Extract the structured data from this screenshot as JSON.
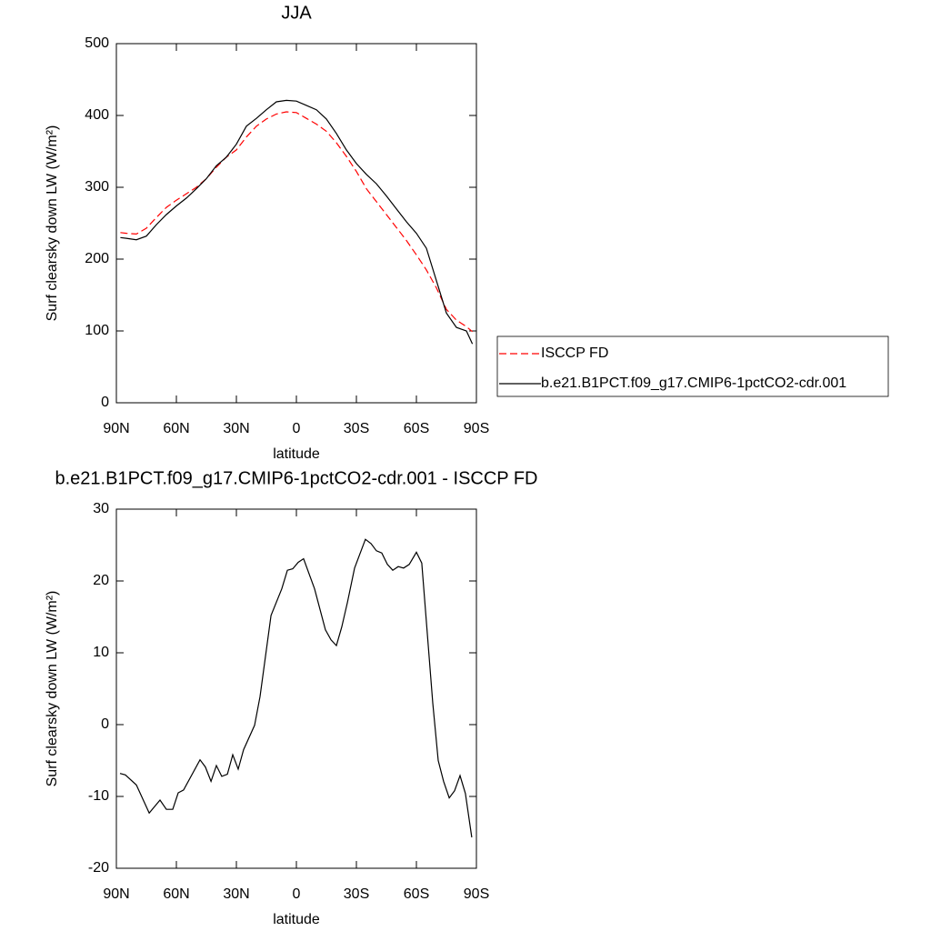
{
  "chart_data": [
    {
      "type": "line",
      "title": "JJA",
      "xlabel": "latitude",
      "ylabel": "Surf clearsky down LW (W/m²)",
      "xlim": [
        90,
        -90
      ],
      "xticks": [
        {
          "value": 90,
          "label": "90N"
        },
        {
          "value": 60,
          "label": "60N"
        },
        {
          "value": 30,
          "label": "30N"
        },
        0,
        {
          "value": -30,
          "label": "30S"
        },
        {
          "value": -60,
          "label": "60S"
        },
        {
          "value": -90,
          "label": "90S"
        }
      ],
      "ylim": [
        0,
        500
      ],
      "yticks": [
        0,
        100,
        200,
        300,
        400,
        500
      ],
      "grid": false,
      "legend": "right",
      "x": [
        88,
        85,
        80,
        75,
        70,
        65,
        60,
        55,
        50,
        45,
        40,
        35,
        30,
        25,
        20,
        15,
        10,
        5,
        0,
        -5,
        -10,
        -15,
        -20,
        -25,
        -30,
        -35,
        -40,
        -45,
        -50,
        -55,
        -60,
        -65,
        -70,
        -75,
        -80,
        -85,
        -88
      ],
      "series": [
        {
          "name": "ISCCP FD",
          "color": "#ff0000",
          "dash": "dashed",
          "values": [
            237,
            236,
            235,
            243,
            258,
            272,
            282,
            291,
            300,
            312,
            328,
            342,
            352,
            370,
            385,
            395,
            402,
            405,
            404,
            396,
            388,
            378,
            362,
            343,
            322,
            298,
            280,
            262,
            244,
            226,
            206,
            185,
            160,
            130,
            115,
            106,
            99
          ]
        },
        {
          "name": "b.e21.B1PCT.f09_g17.CMIP6-1pctCO2-cdr.001",
          "color": "#000000",
          "dash": "solid",
          "values": [
            230,
            229,
            227,
            232,
            248,
            262,
            274,
            285,
            298,
            312,
            330,
            342,
            360,
            385,
            396,
            408,
            419,
            421,
            420,
            414,
            408,
            395,
            375,
            352,
            333,
            318,
            305,
            288,
            270,
            252,
            236,
            215,
            170,
            125,
            105,
            100,
            82
          ]
        }
      ]
    },
    {
      "type": "line",
      "title": "b.e21.B1PCT.f09_g17.CMIP6-1pctCO2-cdr.001 - ISCCP FD",
      "xlabel": "latitude",
      "ylabel": "Surf clearsky down LW (W/m²)",
      "xlim": [
        90,
        -90
      ],
      "xticks": [
        {
          "value": 90,
          "label": "90N"
        },
        {
          "value": 60,
          "label": "60N"
        },
        {
          "value": 30,
          "label": "30N"
        },
        0,
        {
          "value": -30,
          "label": "30S"
        },
        {
          "value": -60,
          "label": "60S"
        },
        {
          "value": -90,
          "label": "90S"
        }
      ],
      "ylim": [
        -20,
        30
      ],
      "yticks": [
        -20,
        -10,
        0,
        10,
        20,
        30
      ],
      "grid": false,
      "x": [
        88.2,
        85.5,
        80,
        73.6,
        68.2,
        65,
        61.8,
        59.1,
        56.4,
        48.2,
        45.5,
        42.7,
        40,
        37.3,
        34.5,
        31.8,
        29.1,
        26.4,
        20.9,
        18.2,
        12.7,
        7.3,
        4.5,
        1.8,
        -0.9,
        -3.6,
        -9.1,
        -14.5,
        -17.3,
        -20,
        -22.7,
        -25.5,
        -29.1,
        -34.5,
        -37.3,
        -40,
        -42.7,
        -45.5,
        -48.2,
        -50.9,
        -53.6,
        -56.4,
        -60,
        -62.7,
        -68.2,
        -70.9,
        -73.6,
        -76.4,
        -79.1,
        -81.8,
        -84.5,
        -87.7
      ],
      "series": [
        {
          "name": null,
          "color": "#000000",
          "dash": "solid",
          "values": [
            -6.8,
            -7.0,
            -8.4,
            -12.3,
            -10.5,
            -11.8,
            -11.8,
            -9.5,
            -9.1,
            -4.9,
            -5.9,
            -7.9,
            -5.7,
            -7.2,
            -6.9,
            -4.2,
            -6.2,
            -3.5,
            -0.1,
            3.9,
            15.2,
            18.9,
            21.5,
            21.7,
            22.6,
            23.1,
            18.9,
            13.2,
            11.8,
            11.0,
            13.6,
            17.0,
            21.8,
            25.8,
            25.2,
            24.2,
            23.9,
            22.3,
            21.5,
            22.0,
            21.8,
            22.3,
            24.0,
            22.5,
            3.0,
            -5.0,
            -7.9,
            -10.2,
            -9.2,
            -7.1,
            -9.6,
            -15.7
          ]
        }
      ]
    }
  ]
}
